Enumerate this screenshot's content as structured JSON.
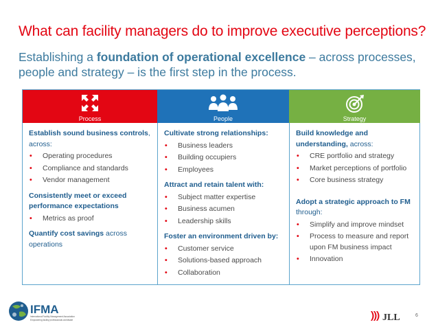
{
  "slide": {
    "title": "What can facility managers do to improve executive perceptions?",
    "subtitle_pre": "Establishing a ",
    "subtitle_bold": "foundation of operational excellence",
    "subtitle_post": " – across processes, people and strategy – is the first step in the process.",
    "page_number": "6"
  },
  "columns": [
    {
      "label": "Process",
      "icon": "arrows-out-icon",
      "color": "#e30613",
      "sections": [
        {
          "head": "Establish sound business controls",
          "head_plain": ", across:",
          "bullets": [
            "Operating procedures",
            "Compliance and standards",
            "Vendor management"
          ]
        },
        {
          "head": "Consistently meet or exceed performance expectations",
          "head_plain": "",
          "bullets": [
            "Metrics as proof"
          ]
        },
        {
          "head": "Quantify cost savings",
          "head_plain": " across operations",
          "bullets": []
        }
      ]
    },
    {
      "label": "People",
      "icon": "people-group-icon",
      "color": "#1f72b8",
      "sections": [
        {
          "head": "Cultivate strong relationships:",
          "bullets": [
            "Business leaders",
            "Building occupiers",
            "Employees"
          ]
        },
        {
          "head": "Attract and retain talent with:",
          "bullets": [
            "Subject matter expertise",
            "Business acumen",
            "Leadership skills"
          ]
        },
        {
          "head": "Foster an environment driven by:",
          "bullets": [
            "Customer service",
            "Solutions-based approach",
            "Collaboration"
          ]
        }
      ]
    },
    {
      "label": "Strategy",
      "icon": "target-icon",
      "color": "#76b043",
      "sections": [
        {
          "head": "Build knowledge and understanding,",
          "head_plain": " across:",
          "bullets": [
            "CRE portfolio and strategy",
            "Market perceptions of portfolio",
            "Core business strategy"
          ]
        },
        {
          "head": "Adopt a strategic approach to FM",
          "head_plain": " through:",
          "bullets": [
            "Simplify and improve mindset",
            "Process to measure and report upon FM business impact",
            "Innovation"
          ]
        }
      ]
    }
  ],
  "footer": {
    "left_logo_text": "IFMA",
    "left_logo_tagline": "International Facility Management Association",
    "left_logo_sub": "Empowering facility professionals worldwide",
    "right_logo_text": "JLL"
  },
  "colors": {
    "red": "#e30613",
    "blue": "#1f72b8",
    "green": "#76b043",
    "heading_blue": "#1f5d8e",
    "subtitle_blue": "#3c7a9e"
  }
}
